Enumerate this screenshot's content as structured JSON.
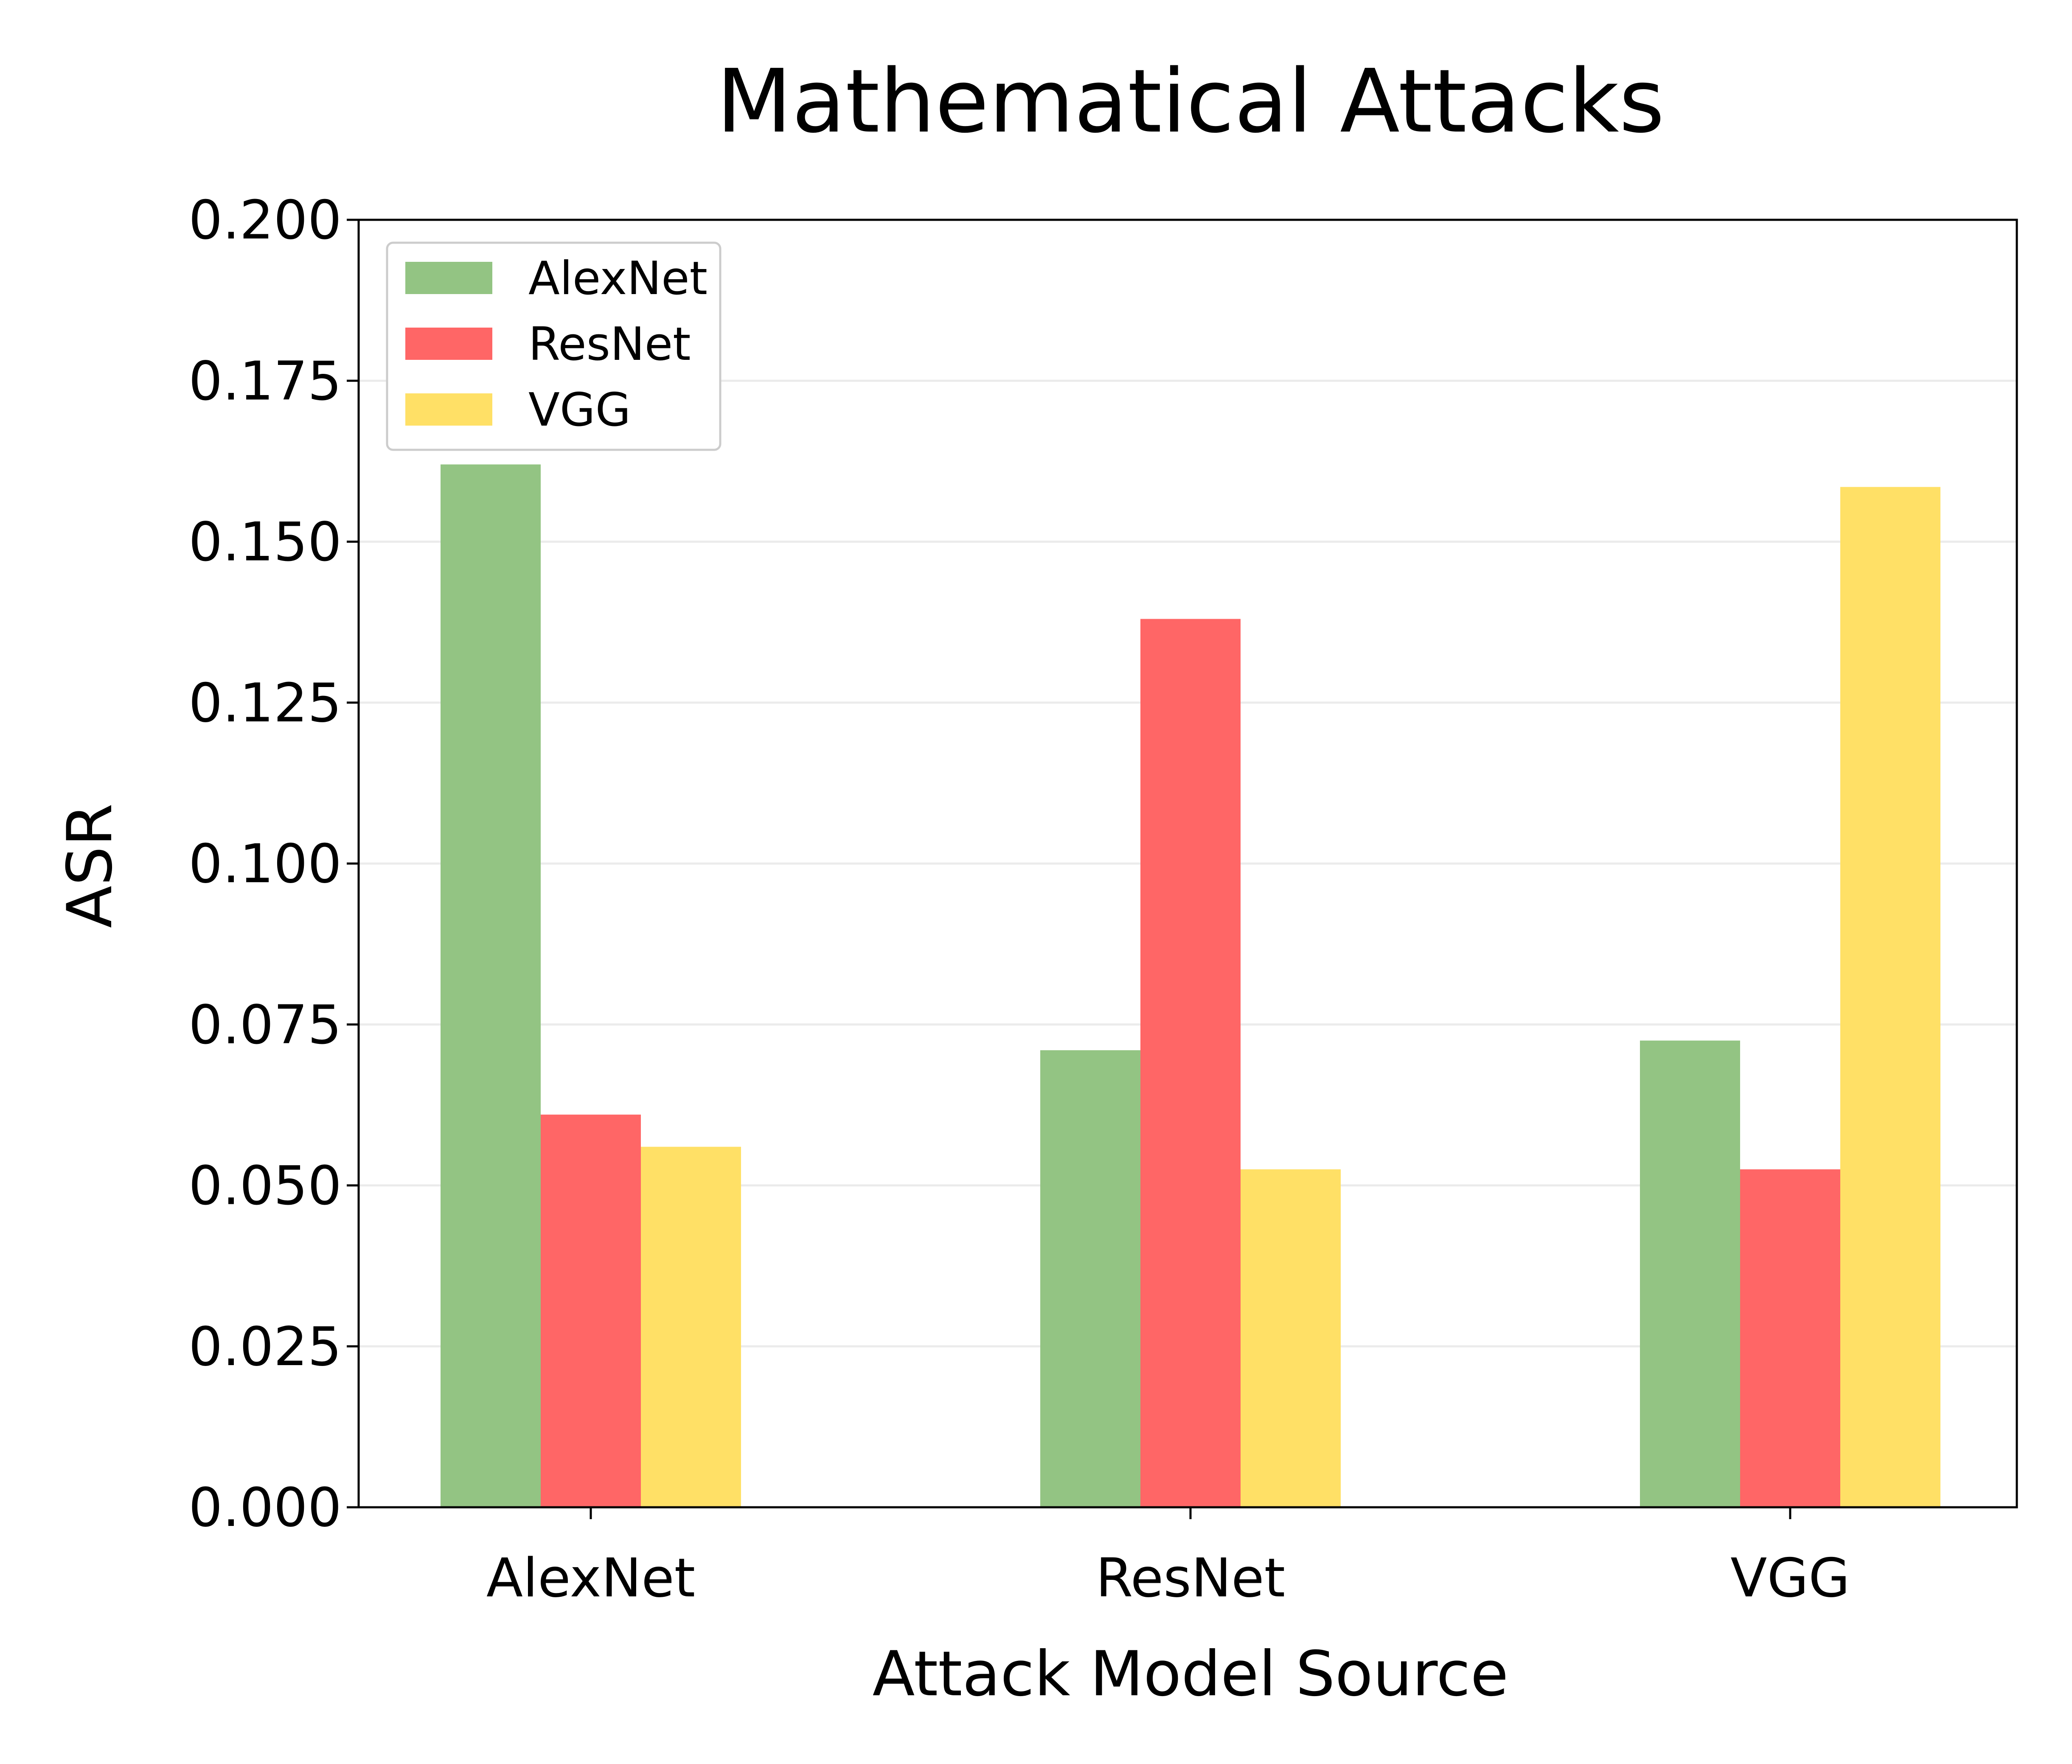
{
  "chart_data": {
    "type": "bar",
    "title": "Mathematical Attacks",
    "xlabel": "Attack Model Source",
    "ylabel": "ASR",
    "categories": [
      "AlexNet",
      "ResNet",
      "VGG"
    ],
    "ylim": [
      0,
      0.2
    ],
    "yticks": [
      "0.000",
      "0.025",
      "0.050",
      "0.075",
      "0.100",
      "0.125",
      "0.150",
      "0.175",
      "0.200"
    ],
    "grid": "horizontal",
    "legend_position": "top-left",
    "series": [
      {
        "name": "AlexNet",
        "color": "#93c483",
        "values": [
          0.162,
          0.071,
          0.0725
        ]
      },
      {
        "name": "ResNet",
        "color": "#ff6666",
        "values": [
          0.061,
          0.138,
          0.0525
        ]
      },
      {
        "name": "VGG",
        "color": "#ffe066",
        "values": [
          0.056,
          0.0525,
          0.1585
        ]
      }
    ]
  }
}
